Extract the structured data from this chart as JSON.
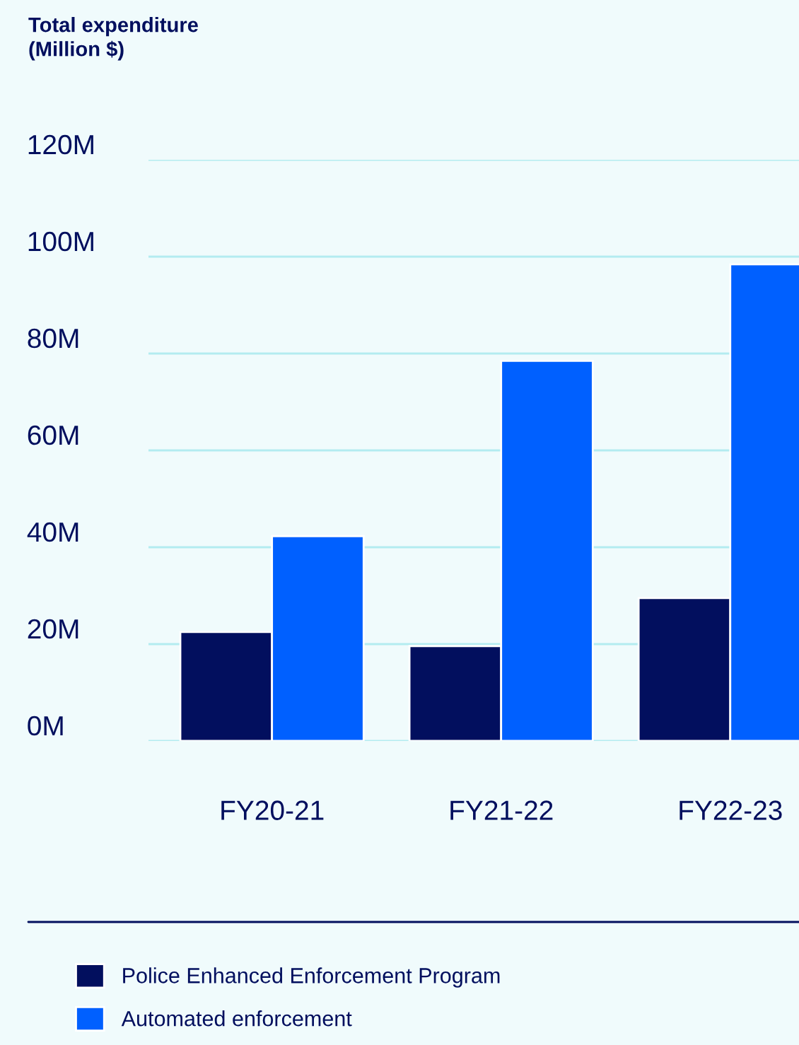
{
  "chart_data": {
    "type": "bar",
    "title": "Total expenditure\n(Million $)",
    "categories": [
      "FY20-21",
      "FY21-22",
      "FY22-23"
    ],
    "series": [
      {
        "name": "Police Enhanced Enforcement Program",
        "color": "#020f5e",
        "values": [
          22.5,
          19.6,
          29.5
        ]
      },
      {
        "name": "Automated enforcement",
        "color": "#0060ff",
        "values": [
          42.3,
          78.5,
          98.4
        ]
      }
    ],
    "ylim": [
      0,
      120
    ],
    "yticks": [
      {
        "value": 0,
        "label": "0M"
      },
      {
        "value": 20,
        "label": "20M"
      },
      {
        "value": 40,
        "label": "40M"
      },
      {
        "value": 60,
        "label": "60M"
      },
      {
        "value": 80,
        "label": "80M"
      },
      {
        "value": 100,
        "label": "100M"
      },
      {
        "value": 120,
        "label": "120M"
      }
    ],
    "grid": "y",
    "legend": "bottom"
  }
}
